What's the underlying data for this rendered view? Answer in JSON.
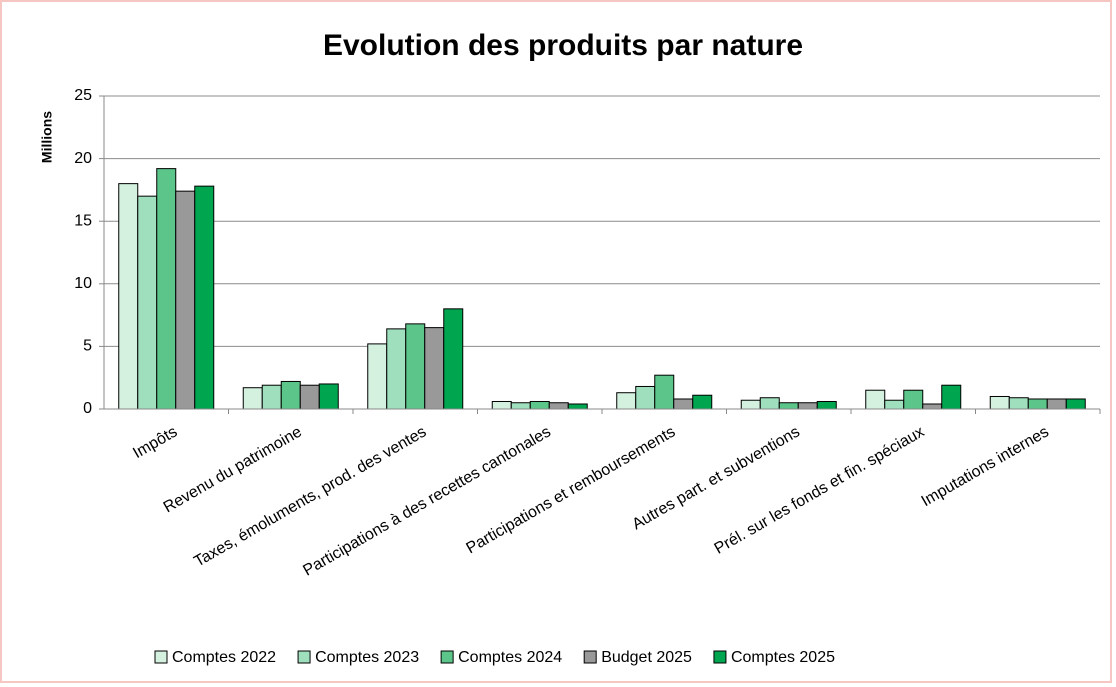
{
  "chart_data": {
    "type": "bar",
    "title": "Evolution des produits par nature",
    "y_label": "Millions",
    "categories": [
      "Impôts",
      "Revenu du patrimoine",
      "Taxes, émoluments, prod. des ventes",
      "Participations à des recettes cantonales",
      "Participations et remboursements",
      "Autres part. et subventions",
      "Prél. sur les fonds et fin. spéciaux",
      "Imputations internes"
    ],
    "series": [
      {
        "name": "Comptes 2022",
        "color": "#d4f1e0",
        "values": [
          18.0,
          1.7,
          5.2,
          0.6,
          1.3,
          0.7,
          1.5,
          1.0
        ]
      },
      {
        "name": "Comptes 2023",
        "color": "#9fdfbe",
        "values": [
          17.0,
          1.9,
          6.4,
          0.5,
          1.8,
          0.9,
          0.7,
          0.9
        ]
      },
      {
        "name": "Comptes 2024",
        "color": "#5cc58a",
        "values": [
          19.2,
          2.2,
          6.8,
          0.6,
          2.7,
          0.5,
          1.5,
          0.8
        ]
      },
      {
        "name": "Budget 2025",
        "color": "#999999",
        "values": [
          17.4,
          1.9,
          6.5,
          0.5,
          0.8,
          0.5,
          0.4,
          0.8
        ]
      },
      {
        "name": "Comptes 2025",
        "color": "#00a550",
        "values": [
          17.8,
          2.0,
          8.0,
          0.4,
          1.1,
          0.6,
          1.9,
          0.8
        ]
      }
    ],
    "ylim": [
      0,
      25
    ],
    "yticks": [
      0,
      5,
      10,
      15,
      20,
      25
    ],
    "grid": true,
    "legend": "bottom"
  }
}
